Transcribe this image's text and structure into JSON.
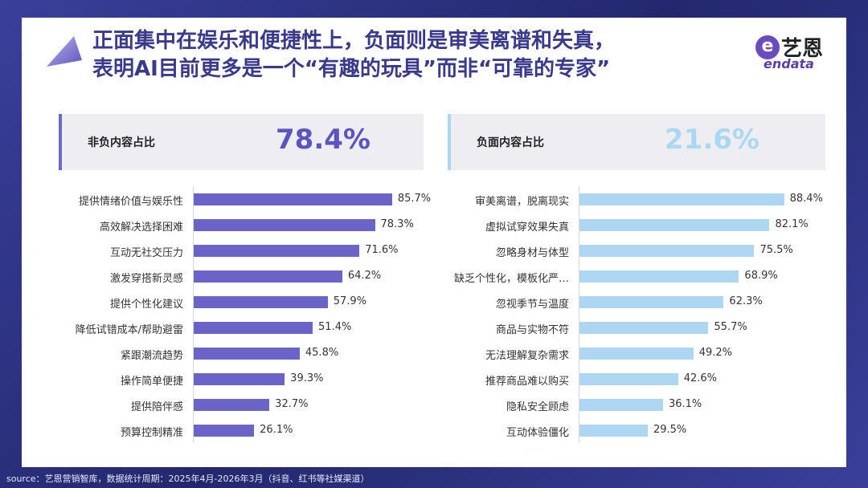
{
  "title": {
    "line1": "正面集中在娱乐和便捷性上，负面则是审美离谱和失真，",
    "line2": "表明AI目前更多是一个“有趣的玩具”而非“可靠的专家”"
  },
  "logo": {
    "cn": "艺恩",
    "en": "endata",
    "mark": "e"
  },
  "colors": {
    "positive": "#6a63c8",
    "negative": "#acd6f2",
    "positive_text": "#5b55c2",
    "negative_text": "#aad8f3"
  },
  "chart_data": [
    {
      "type": "bar",
      "orientation": "horizontal",
      "header_label": "非负内容占比",
      "header_value": "78.4%",
      "categories": [
        "提供情绪价值与娱乐性",
        "高效解决选择困难",
        "互动无社交压力",
        "激发穿搭新灵感",
        "提供个性化建议",
        "降低试错成本/帮助避雷",
        "紧跟潮流趋势",
        "操作简单便捷",
        "提供陪伴感",
        "预算控制精准"
      ],
      "values": [
        85.7,
        78.3,
        71.6,
        64.2,
        57.9,
        51.4,
        45.8,
        39.3,
        32.7,
        26.1
      ],
      "labels": [
        "85.7%",
        "78.3%",
        "71.6%",
        "64.2%",
        "57.9%",
        "51.4%",
        "45.8%",
        "39.3%",
        "32.7%",
        "26.1%"
      ],
      "xlim": [
        0,
        100
      ]
    },
    {
      "type": "bar",
      "orientation": "horizontal",
      "header_label": "负面内容占比",
      "header_value": "21.6%",
      "categories": [
        "审美离谱，脱离现实",
        "虚拟试穿效果失真",
        "忽略身材与体型",
        "缺乏个性化，模板化严…",
        "忽视季节与温度",
        "商品与实物不符",
        "无法理解复杂需求",
        "推荐商品难以购买",
        "隐私安全顾虑",
        "互动体验僵化"
      ],
      "values": [
        88.4,
        82.1,
        75.5,
        68.9,
        62.3,
        55.7,
        49.2,
        42.6,
        36.1,
        29.5
      ],
      "labels": [
        "88.4%",
        "82.1%",
        "75.5%",
        "68.9%",
        "62.3%",
        "55.7%",
        "49.2%",
        "42.6%",
        "36.1%",
        "29.5%"
      ],
      "xlim": [
        0,
        100
      ]
    }
  ],
  "source": "source：艺恩营销智库，数据统计周期：2025年4月-2026年3月（抖音、红书等社媒渠道）"
}
